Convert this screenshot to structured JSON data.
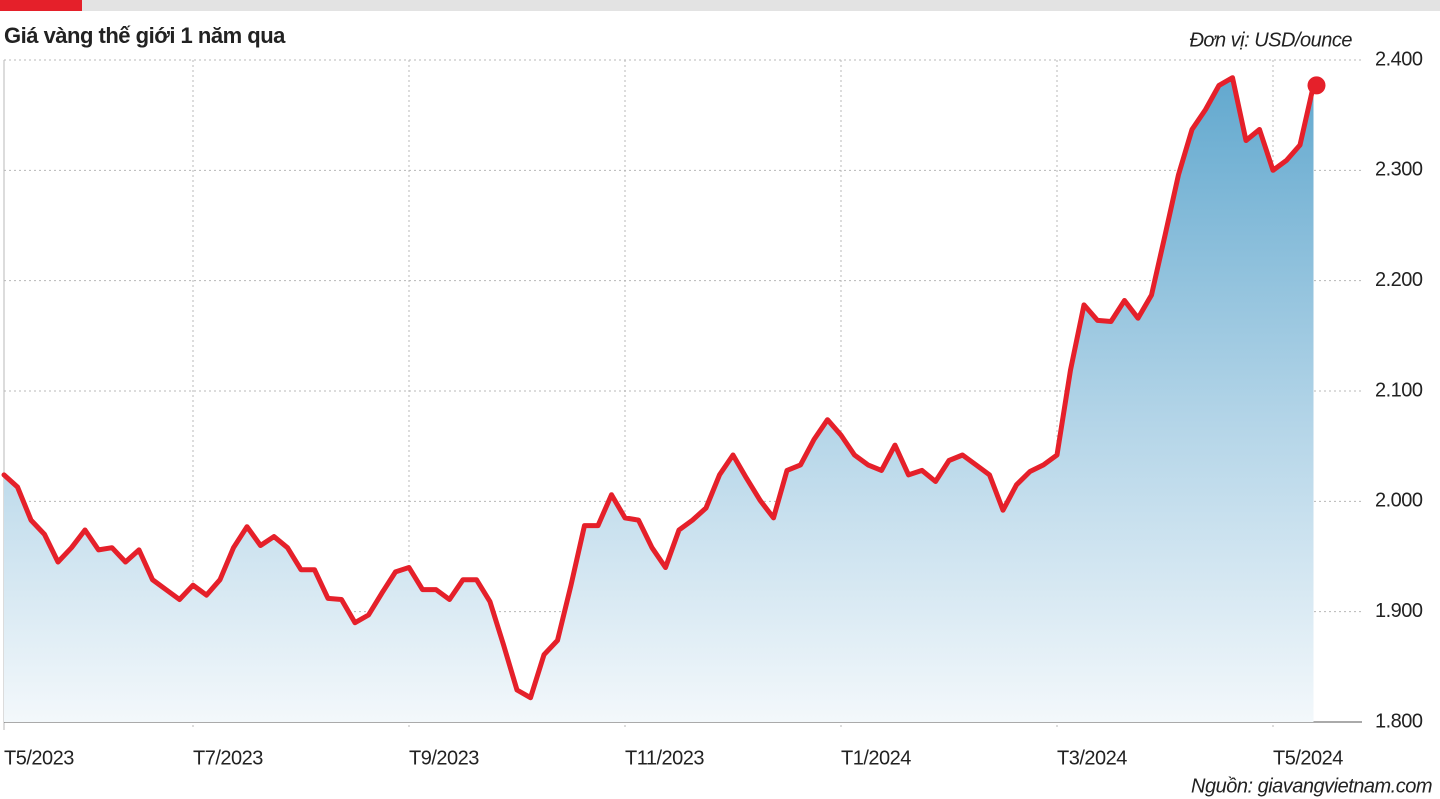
{
  "chart_data": {
    "type": "line",
    "title": "Giá vàng thế giới 1 năm qua",
    "unit_label": "Đơn vị: USD/ounce",
    "source": "Nguồn: giavangvietnam.com",
    "categories": [
      "T5/2023",
      null,
      null,
      null,
      null,
      null,
      null,
      null,
      null,
      null,
      null,
      null,
      null,
      null,
      "T7/2023",
      null,
      null,
      null,
      null,
      null,
      null,
      null,
      null,
      null,
      null,
      null,
      null,
      null,
      null,
      null,
      "T9/2023",
      null,
      null,
      null,
      null,
      null,
      null,
      null,
      null,
      null,
      null,
      null,
      null,
      null,
      null,
      null,
      "T11/2023",
      null,
      null,
      null,
      null,
      null,
      null,
      null,
      null,
      null,
      null,
      null,
      null,
      null,
      null,
      null,
      "T1/2024",
      null,
      null,
      null,
      null,
      null,
      null,
      null,
      null,
      null,
      null,
      null,
      null,
      null,
      null,
      null,
      "T3/2024",
      null,
      null,
      null,
      null,
      null,
      null,
      null,
      null,
      null,
      null,
      null,
      null,
      null,
      null,
      null,
      "T5/2024",
      null,
      null,
      null
    ],
    "values": [
      2024,
      2013,
      1983,
      1970,
      1945,
      1958,
      1974,
      1956,
      1958,
      1945,
      1956,
      1929,
      1920,
      1911,
      1924,
      1915,
      1929,
      1958,
      1977,
      1960,
      1968,
      1958,
      1938,
      1938,
      1912,
      1911,
      1890,
      1897,
      1917,
      1936,
      1940,
      1920,
      1920,
      1911,
      1929,
      1929,
      1909,
      1870,
      1829,
      1822,
      1861,
      1874,
      1924,
      1978,
      1978,
      2006,
      1985,
      1983,
      1958,
      1940,
      1974,
      1983,
      1994,
      2024,
      2042,
      2021,
      2001,
      1985,
      2028,
      2033,
      2056,
      2074,
      2060,
      2042,
      2033,
      2028,
      2051,
      2024,
      2028,
      2018,
      2037,
      2042,
      2033,
      2024,
      1992,
      2015,
      2027,
      2033,
      2042,
      2119,
      2178,
      2164,
      2163,
      2182,
      2166,
      2187,
      2241,
      2296,
      2337,
      2355,
      2377,
      2384,
      2327,
      2337,
      2300,
      2309,
      2323,
      2377
    ],
    "color": "#e5202a",
    "fill": true,
    "ylim": [
      1800,
      2400
    ],
    "yticks": [
      {
        "value": 1800,
        "label": "1.800"
      },
      {
        "value": 1900,
        "label": "1.900"
      },
      {
        "value": 2000,
        "label": "2.000"
      },
      {
        "value": 2100,
        "label": "2.100"
      },
      {
        "value": 2200,
        "label": "2.200"
      },
      {
        "value": 2300,
        "label": "2.300"
      },
      {
        "value": 2400,
        "label": "2.400"
      }
    ],
    "grid": true
  }
}
